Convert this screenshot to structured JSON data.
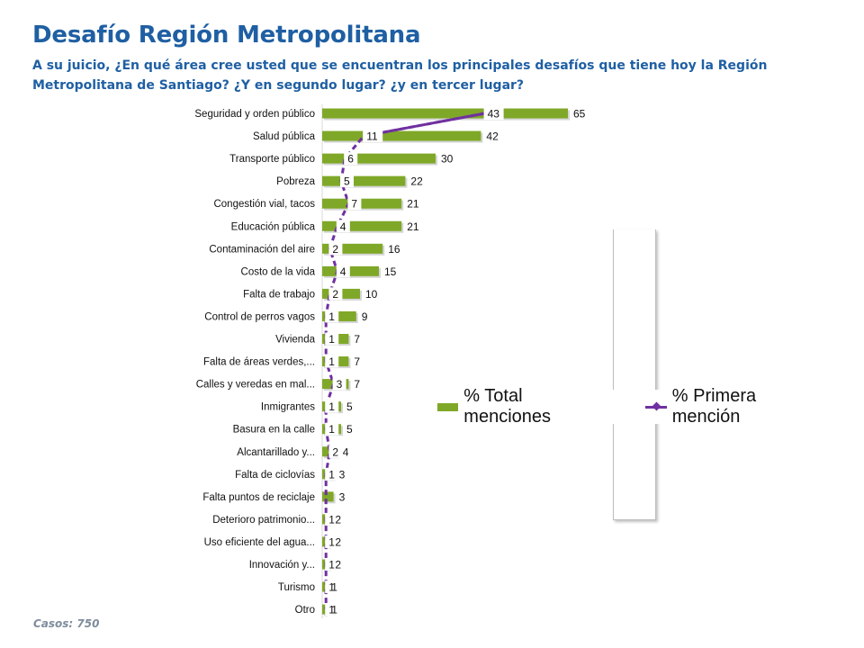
{
  "header": {
    "title": "Desafío Región Metropolitana",
    "subtitle": "A su juicio, ¿En qué área cree usted que se encuentran los principales desafíos que tiene hoy la Región Metropolitana de Santiago? ¿Y en segundo lugar? ¿y en tercer lugar?"
  },
  "footer": {
    "cases": "Casos:  750"
  },
  "colors": {
    "title": "#1f5fa3",
    "bar": "#7fa828",
    "line": "#7030a0"
  },
  "chart_data": {
    "type": "bar",
    "orientation": "horizontal",
    "categories": [
      "Seguridad y orden público",
      "Salud pública",
      "Transporte público",
      "Pobreza",
      "Congestión vial, tacos",
      "Educación pública",
      "Contaminación del aire",
      "Costo de la vida",
      "Falta de trabajo",
      "Control de perros vagos",
      "Vivienda",
      "Falta de áreas verdes,...",
      "Calles y veredas en mal...",
      "Inmigrantes",
      "Basura en la calle",
      "Alcantarillado y...",
      "Falta de ciclovías",
      "Falta puntos de reciclaje",
      "Deterioro patrimonio...",
      "Uso eficiente del agua...",
      "Innovación y...",
      "Turismo",
      "Otro"
    ],
    "series": [
      {
        "name": "% Total menciones",
        "type": "bar",
        "values": [
          65,
          42,
          30,
          22,
          21,
          21,
          16,
          15,
          10,
          9,
          7,
          7,
          7,
          5,
          5,
          4,
          3,
          3,
          2,
          2,
          2,
          1,
          1
        ]
      },
      {
        "name": "% Primera mención",
        "type": "line",
        "values": [
          43,
          11,
          6,
          5,
          7,
          4,
          2,
          4,
          2,
          1,
          1,
          1,
          3,
          1,
          1,
          2,
          1,
          "",
          1,
          1,
          1,
          1,
          1
        ]
      }
    ],
    "legend": "right"
  }
}
